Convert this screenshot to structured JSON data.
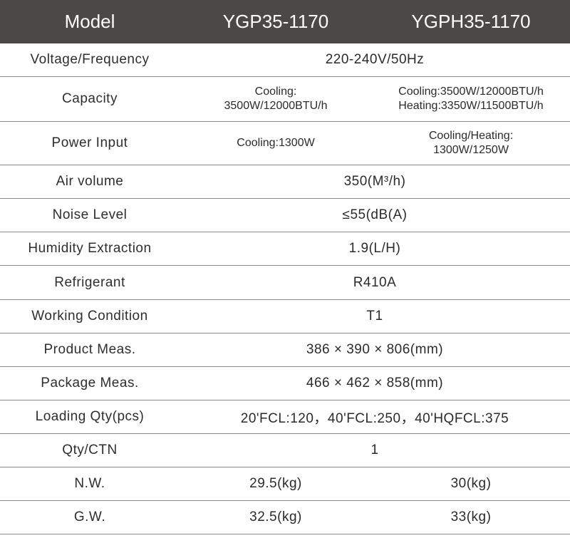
{
  "header": {
    "label": "Model",
    "model_1": "YGP35-1170",
    "model_2": "YGPH35-1170"
  },
  "rows": [
    {
      "label": "Voltage/Frequency",
      "value": "220-240V/50Hz"
    },
    {
      "label": "Capacity",
      "value_1_line1": "Cooling:",
      "value_1_line2": "3500W/12000BTU/h",
      "value_2_line1": "Cooling:3500W/12000BTU/h",
      "value_2_line2": "Heating:3350W/11500BTU/h"
    },
    {
      "label": "Power Input",
      "value_1": "Cooling:1300W",
      "value_2_line1": "Cooling/Heating:",
      "value_2_line2": "1300W/1250W"
    },
    {
      "label": "Air volume",
      "value": "350(M³/h)"
    },
    {
      "label": "Noise Level",
      "value": "≤55(dB(A)"
    },
    {
      "label": "Humidity Extraction",
      "value": "1.9(L/H)"
    },
    {
      "label": "Refrigerant",
      "value": "R410A"
    },
    {
      "label": "Working Condition",
      "value": "T1"
    },
    {
      "label": "Product Meas.",
      "value": "386 × 390 × 806(mm)"
    },
    {
      "label": "Package Meas.",
      "value": "466 × 462 × 858(mm)"
    },
    {
      "label": "Loading Qty(pcs)",
      "value": "20'FCL:120，40'FCL:250，40'HQFCL:375"
    },
    {
      "label": "Qty/CTN",
      "value": "1"
    },
    {
      "label": "N.W.",
      "value_1": "29.5(kg)",
      "value_2": "30(kg)"
    },
    {
      "label": "G.W.",
      "value_1": "32.5(kg)",
      "value_2": "33(kg)"
    }
  ]
}
